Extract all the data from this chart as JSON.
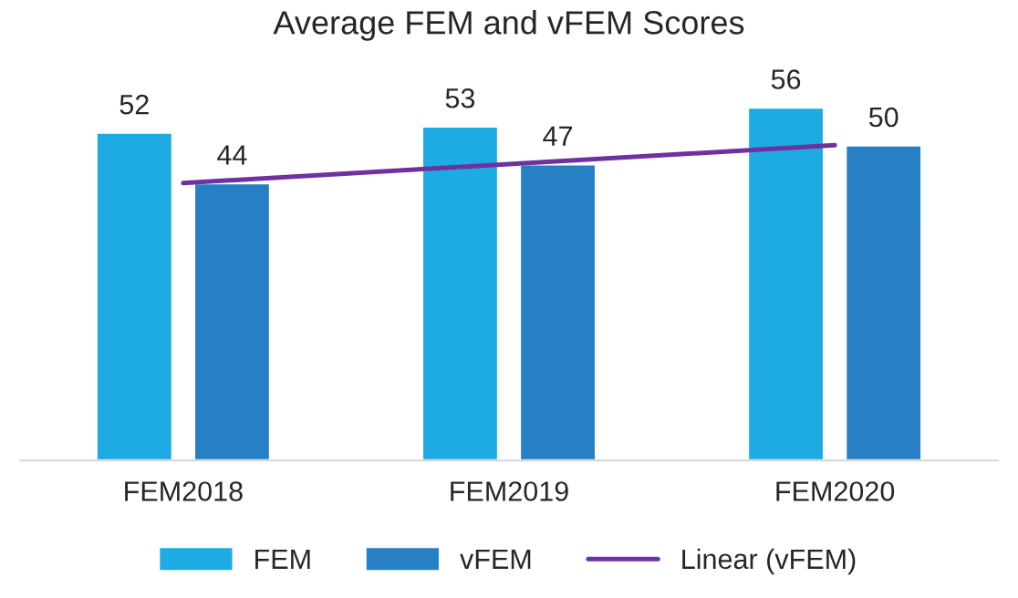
{
  "chart_data": {
    "type": "bar",
    "title": "Average FEM and vFEM Scores",
    "categories": [
      "FEM2018",
      "FEM2019",
      "FEM2020"
    ],
    "series": [
      {
        "name": "FEM",
        "color": "#1eaae3",
        "values": [
          52,
          53,
          56
        ],
        "value_labels": [
          "52",
          "53",
          "56"
        ]
      },
      {
        "name": "vFEM",
        "color": "#2880c4",
        "values": [
          44,
          47,
          50
        ],
        "value_labels": [
          "44",
          "47",
          "50"
        ]
      },
      {
        "name": "Linear (vFEM)",
        "type": "line",
        "color": "#7030a0",
        "values": [
          44,
          47,
          50
        ]
      }
    ],
    "grid": false,
    "legend": "bottom",
    "tick_labels": "x"
  }
}
